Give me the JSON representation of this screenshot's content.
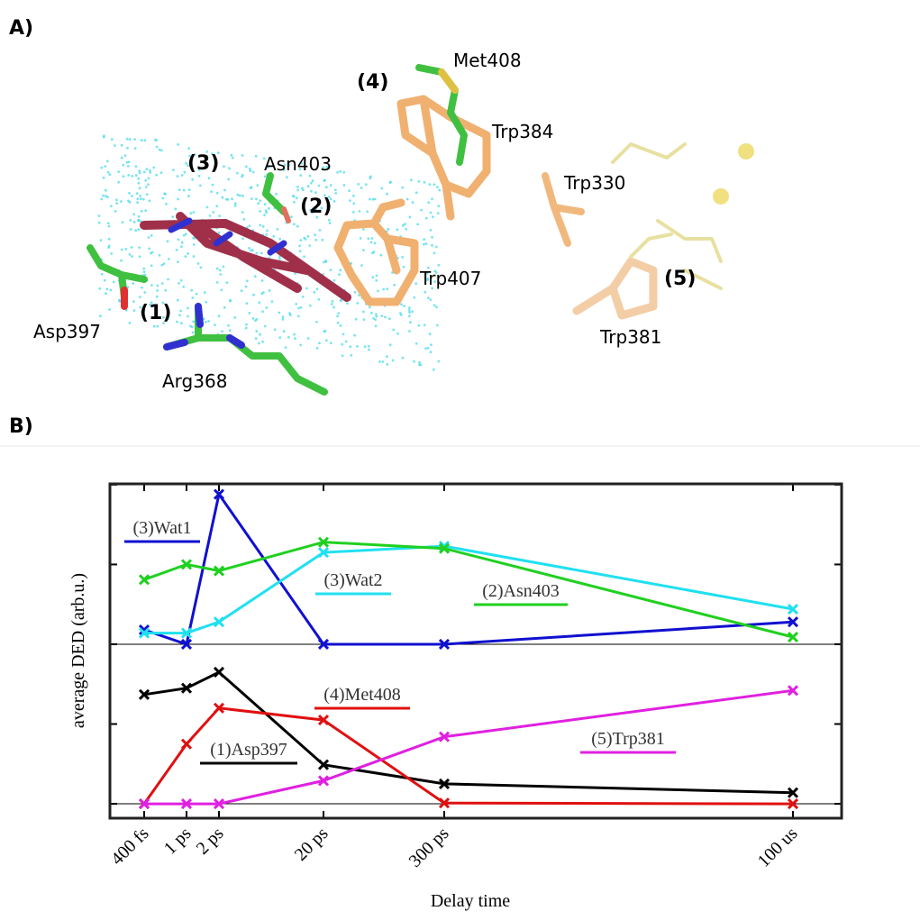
{
  "panel_a": {
    "panel_label": "A)",
    "labels": [
      "(1)",
      "(2)",
      "(3)",
      "(4)",
      "(5)",
      "Met408",
      "Trp384",
      "Asn403",
      "Trp330",
      "Trp407",
      "Asp397",
      "Arg368",
      "Trp381"
    ]
  },
  "panel_b": {
    "panel_label": "B)"
  },
  "chart_data": {
    "type": "line",
    "xlabel": "Delay time",
    "ylabel": "average DED (arb.u.)",
    "categories": [
      "400 fs",
      "1 ps",
      "2 ps",
      "20 ps",
      "300 ps",
      "100 us"
    ],
    "ylim": [
      -0.18,
      4.01
    ],
    "yticks": [
      0,
      1,
      2,
      3,
      4
    ],
    "hlines": [
      0,
      2
    ],
    "series": [
      {
        "name": "(3)Wat1",
        "color": "#1010d0",
        "values": [
          2.18,
          2.0,
          3.88,
          2.0,
          2.0,
          2.28
        ]
      },
      {
        "name": "(3)Wat2",
        "color": "#20e0f0",
        "values": [
          2.14,
          2.14,
          2.28,
          3.15,
          3.23,
          2.44
        ]
      },
      {
        "name": "(2)Asn403",
        "color": "#20d020",
        "values": [
          2.81,
          3.0,
          2.92,
          3.28,
          3.2,
          2.09
        ]
      },
      {
        "name": "(1)Asp397",
        "color": "#000000",
        "values": [
          1.37,
          1.45,
          1.65,
          0.49,
          0.25,
          0.14
        ]
      },
      {
        "name": "(4)Met408",
        "color": "#e01010",
        "values": [
          0,
          0.75,
          1.2,
          1.05,
          0.01,
          0
        ]
      },
      {
        "name": "(5)Trp381",
        "color": "#e020e0",
        "values": [
          0,
          0,
          0,
          0.29,
          0.84,
          1.42
        ]
      }
    ]
  }
}
